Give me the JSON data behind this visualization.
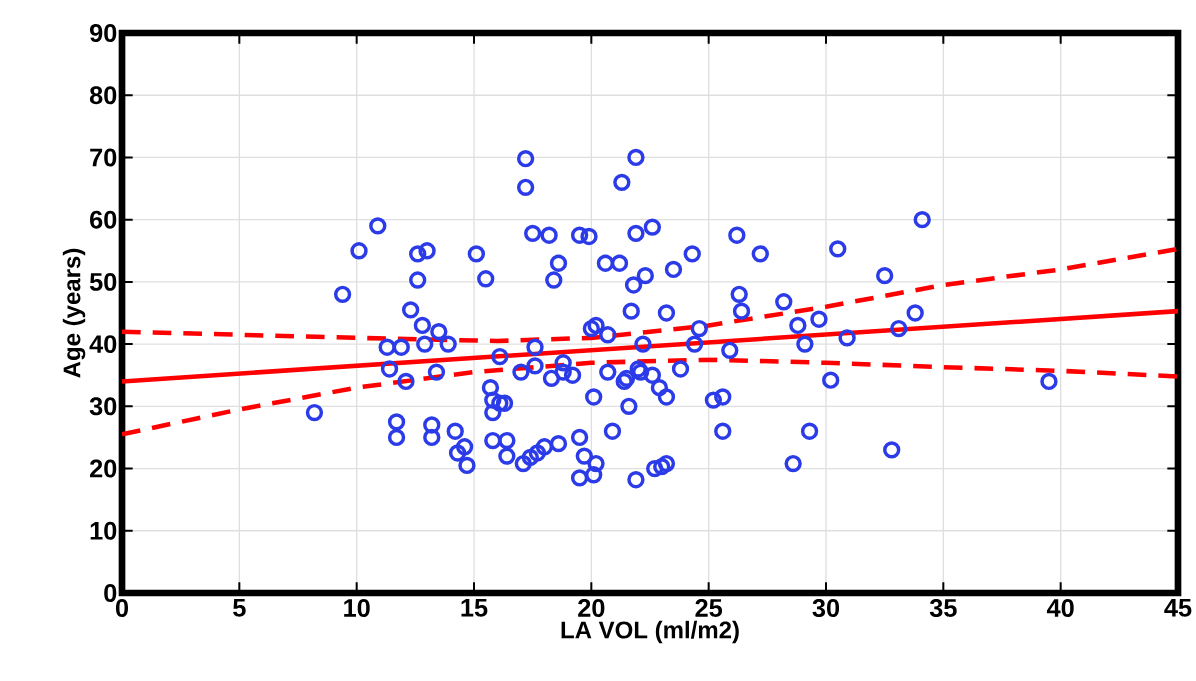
{
  "chart_data": {
    "type": "scatter",
    "xlabel": "LA VOL (ml/m2)",
    "ylabel": "Age (years)",
    "xlim": [
      0,
      45
    ],
    "ylim": [
      0,
      90
    ],
    "xticks": [
      0,
      5,
      10,
      15,
      20,
      25,
      30,
      35,
      40,
      45
    ],
    "yticks": [
      0,
      10,
      20,
      30,
      40,
      50,
      60,
      70,
      80,
      90
    ],
    "grid": true,
    "series": [
      {
        "color": "#2b3be8",
        "marker": "circle",
        "x": [
          8.2,
          9.4,
          10.1,
          10.9,
          11.3,
          11.4,
          11.7,
          11.7,
          11.9,
          12.1,
          12.3,
          12.6,
          12.6,
          12.8,
          12.9,
          13.0,
          13.2,
          13.2,
          13.4,
          13.5,
          13.9,
          14.2,
          14.3,
          14.6,
          14.7,
          15.1,
          15.5,
          15.7,
          15.8,
          15.8,
          15.8,
          16.1,
          16.1,
          16.3,
          16.4,
          16.4,
          17.0,
          17.1,
          17.2,
          17.2,
          17.4,
          17.5,
          17.6,
          17.6,
          17.7,
          18.0,
          18.2,
          18.3,
          18.4,
          18.6,
          18.6,
          18.8,
          18.8,
          19.2,
          19.5,
          19.5,
          19.5,
          19.7,
          19.9,
          20.0,
          20.1,
          20.1,
          20.2,
          20.2,
          20.6,
          20.7,
          20.7,
          20.9,
          21.2,
          21.3,
          21.4,
          21.5,
          21.6,
          21.7,
          21.8,
          21.9,
          21.9,
          21.9,
          22.0,
          22.2,
          22.1,
          22.3,
          22.6,
          22.6,
          22.7,
          22.9,
          23.0,
          23.2,
          23.2,
          23.2,
          23.5,
          23.8,
          24.3,
          24.4,
          24.6,
          25.2,
          25.6,
          25.6,
          25.9,
          26.2,
          26.3,
          26.4,
          27.2,
          28.2,
          28.6,
          28.8,
          29.1,
          29.3,
          29.7,
          30.2,
          30.5,
          30.9,
          32.5,
          32.8,
          33.1,
          33.8,
          34.1,
          39.5
        ],
        "values": [
          29,
          48,
          55,
          59,
          39.5,
          36,
          27.5,
          25,
          39.5,
          34,
          45.5,
          50.3,
          54.5,
          43,
          40,
          55,
          27,
          25,
          35.5,
          42,
          40,
          26,
          22.5,
          23.5,
          20.5,
          54.5,
          50.5,
          33,
          31,
          29,
          24.5,
          30.5,
          38,
          30.5,
          24.5,
          22,
          35.5,
          20.8,
          69.8,
          65.2,
          21.8,
          57.8,
          36.5,
          39.5,
          22.5,
          23.5,
          57.5,
          34.5,
          50.3,
          53,
          24,
          37,
          35.5,
          35,
          57.5,
          25,
          18.5,
          22,
          57.3,
          42.5,
          31.5,
          19,
          20.8,
          43,
          53,
          35.5,
          41.5,
          26,
          53,
          66,
          34,
          34.5,
          30,
          45.3,
          49.5,
          57.8,
          70,
          18.2,
          36,
          40,
          35.5,
          51,
          58.8,
          35,
          20,
          33,
          20.3,
          31.5,
          45,
          20.8,
          52,
          36,
          54.5,
          40,
          42.5,
          31,
          31.5,
          26,
          39,
          57.5,
          48,
          45.3,
          54.5,
          46.8,
          20.8,
          43,
          40,
          26,
          44,
          34.2,
          55.3,
          41,
          51,
          23,
          42.5,
          45,
          60,
          34
        ]
      },
      {
        "type": "line",
        "color": "#ff0000",
        "line_style": "solid",
        "x": [
          0,
          45
        ],
        "values": [
          34,
          45.3
        ]
      },
      {
        "type": "line",
        "color": "#ff0000",
        "line_style": "dashed",
        "x": [
          0,
          10,
          16,
          20,
          25,
          30,
          35,
          40,
          45
        ],
        "values": [
          42,
          41,
          40.5,
          41,
          43,
          46,
          49.5,
          52,
          55.3
        ]
      },
      {
        "type": "line",
        "color": "#ff0000",
        "line_style": "dashed",
        "x": [
          0,
          5,
          10,
          15,
          20,
          25,
          30,
          35,
          40,
          45
        ],
        "values": [
          25.5,
          29.5,
          33,
          35.5,
          37,
          37.5,
          37,
          36.3,
          35.7,
          34.8
        ]
      }
    ]
  }
}
